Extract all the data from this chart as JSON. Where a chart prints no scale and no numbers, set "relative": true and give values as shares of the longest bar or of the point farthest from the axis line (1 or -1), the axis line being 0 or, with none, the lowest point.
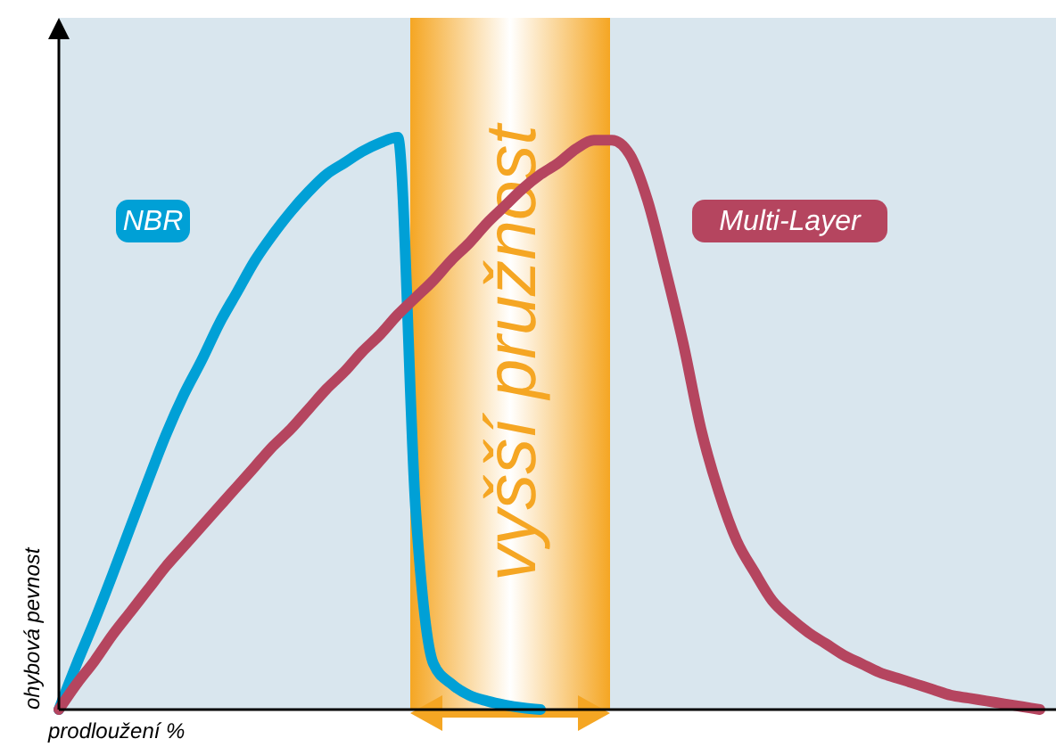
{
  "chart_data": {
    "type": "line",
    "relative": true,
    "xlabel": "prodloužení %",
    "ylabel": "ohybová pevnost",
    "line_style": "solid",
    "annotations": [
      "vyšší pružnost"
    ],
    "categories": [
      null,
      null,
      null,
      null,
      null,
      null,
      null,
      null,
      null,
      null,
      null,
      null,
      null,
      null,
      null,
      null,
      null,
      null,
      null,
      null,
      null,
      null,
      null,
      null,
      null,
      null,
      null,
      null,
      null,
      null,
      null,
      null,
      null,
      null,
      null,
      null,
      null,
      null,
      null,
      null,
      null,
      null,
      null,
      null,
      null,
      null,
      null,
      null,
      null,
      null,
      null,
      null,
      null,
      null,
      null,
      null
    ],
    "series": [
      {
        "name": "NBR",
        "color": "#00a0d6",
        "values": [
          0,
          0.08,
          0.155,
          0.235,
          0.318,
          0.4,
          0.48,
          0.55,
          0.61,
          0.675,
          0.73,
          0.785,
          0.83,
          0.87,
          0.905,
          0.935,
          0.955,
          0.975,
          0.99,
          1,
          0.35,
          0.08,
          0.045,
          0.025,
          0.015,
          0.008,
          0.003,
          0,
          null,
          null,
          null,
          null,
          null,
          null,
          null,
          null,
          null,
          null,
          null,
          null,
          null,
          null,
          null,
          null,
          null,
          null,
          null,
          null,
          null,
          null,
          null,
          null,
          null,
          null,
          null,
          null
        ]
      },
      {
        "name": "Multi-Layer",
        "color": "#b5455f",
        "values": [
          0,
          0.045,
          0.085,
          0.13,
          0.17,
          0.21,
          0.25,
          0.285,
          0.32,
          0.355,
          0.39,
          0.425,
          0.46,
          0.49,
          0.525,
          0.56,
          0.59,
          0.625,
          0.655,
          0.69,
          0.72,
          0.75,
          0.785,
          0.815,
          0.85,
          0.88,
          0.91,
          0.935,
          0.955,
          0.98,
          0.995,
          0.995,
          0.97,
          0.89,
          0.77,
          0.64,
          0.49,
          0.38,
          0.295,
          0.24,
          0.19,
          0.16,
          0.135,
          0.115,
          0.095,
          0.08,
          0.065,
          0.055,
          0.045,
          0.035,
          0.025,
          0.02,
          0.015,
          0.01,
          0.005,
          0
        ]
      }
    ]
  }
}
